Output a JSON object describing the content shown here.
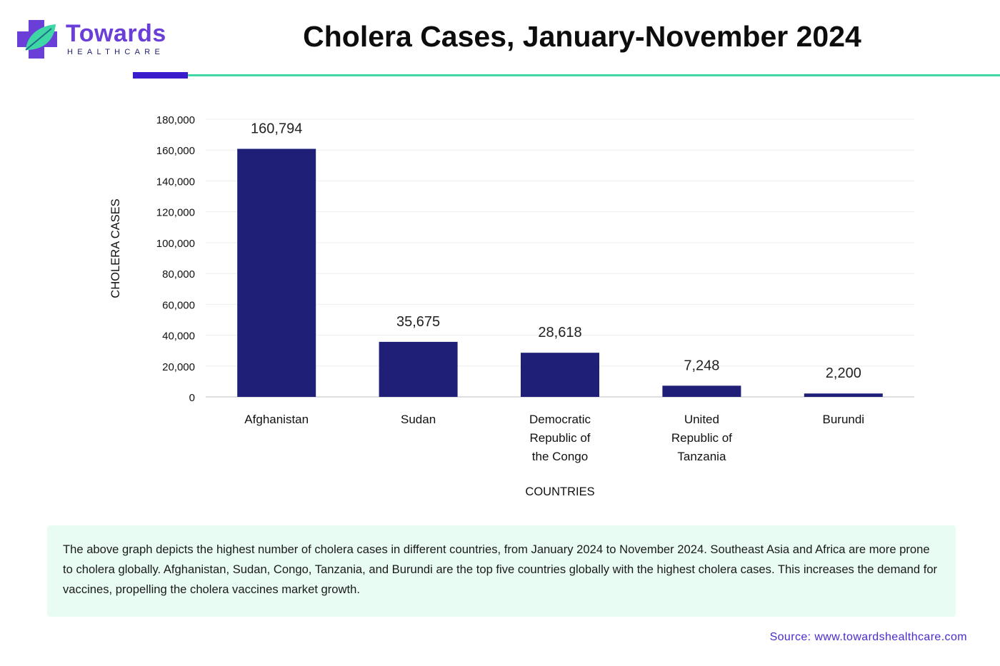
{
  "brand": {
    "name": "Towards",
    "subtitle": "HEALTHCARE",
    "colors": {
      "purple": "#6a3fd8",
      "teal": "#3fd6a6",
      "navy": "#1f1f6e"
    }
  },
  "header": {
    "title": "Cholera Cases, January-November 2024"
  },
  "chart_data": {
    "type": "bar",
    "categories": [
      [
        "Afghanistan"
      ],
      [
        "Sudan"
      ],
      [
        "Democratic",
        "Republic of",
        "the Congo"
      ],
      [
        "United",
        "Republic of",
        "Tanzania"
      ],
      [
        "Burundi"
      ]
    ],
    "values": [
      160794,
      35675,
      28618,
      7248,
      2200
    ],
    "value_labels": [
      "160,794",
      "35,675",
      "28,618",
      "7,248",
      "2,200"
    ],
    "yticks": [
      "0",
      "20,000",
      "40,000",
      "60,000",
      "80,000",
      "100,000",
      "120,000",
      "140,000",
      "160,000",
      "180,000"
    ],
    "ylim": [
      0,
      180000
    ],
    "xlabel": "COUNTRIES",
    "ylabel": "CHOLERA CASES",
    "bar_color": "#1f1f78",
    "grid": true
  },
  "description": "The above graph depicts the highest number of cholera cases in different countries, from January 2024 to November 2024. Southeast Asia and Africa are more prone to cholera globally. Afghanistan, Sudan, Congo, Tanzania, and Burundi are the top five countries globally with the highest cholera cases. This increases the demand for vaccines, propelling the cholera vaccines market growth.",
  "source": "Source: www.towardshealthcare.com"
}
